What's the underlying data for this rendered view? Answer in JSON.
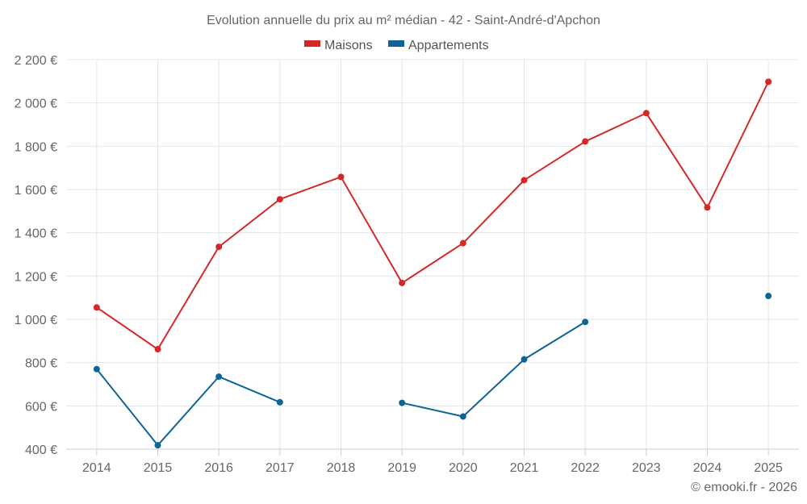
{
  "chart_data": {
    "type": "line",
    "title": "Evolution annuelle du prix au m² médian - 42 - Saint-André-d'Apchon",
    "categories": [
      "2014",
      "2015",
      "2016",
      "2017",
      "2018",
      "2019",
      "2020",
      "2021",
      "2022",
      "2023",
      "2024",
      "2025"
    ],
    "series": [
      {
        "name": "Maisons",
        "color": "#d62728",
        "values": [
          1055,
          862,
          1335,
          1555,
          1658,
          1168,
          1352,
          1643,
          1822,
          1953,
          1517,
          2098
        ]
      },
      {
        "name": "Appartements",
        "color": "#0e6496",
        "values": [
          770,
          418,
          735,
          617,
          null,
          614,
          551,
          815,
          988,
          null,
          null,
          1108
        ]
      }
    ],
    "ylim": [
      400,
      2200
    ],
    "yticks": [
      400,
      600,
      800,
      1000,
      1200,
      1400,
      1600,
      1800,
      2000,
      2200
    ],
    "ytick_labels": [
      "400 €",
      "600 €",
      "800 €",
      "1 000 €",
      "1 200 €",
      "1 400 €",
      "1 600 €",
      "1 800 €",
      "2 000 €",
      "2 200 €"
    ],
    "xlabel": "",
    "ylabel": "",
    "legend": "top-center",
    "grid": true
  },
  "credit": "© emooki.fr - 2026"
}
